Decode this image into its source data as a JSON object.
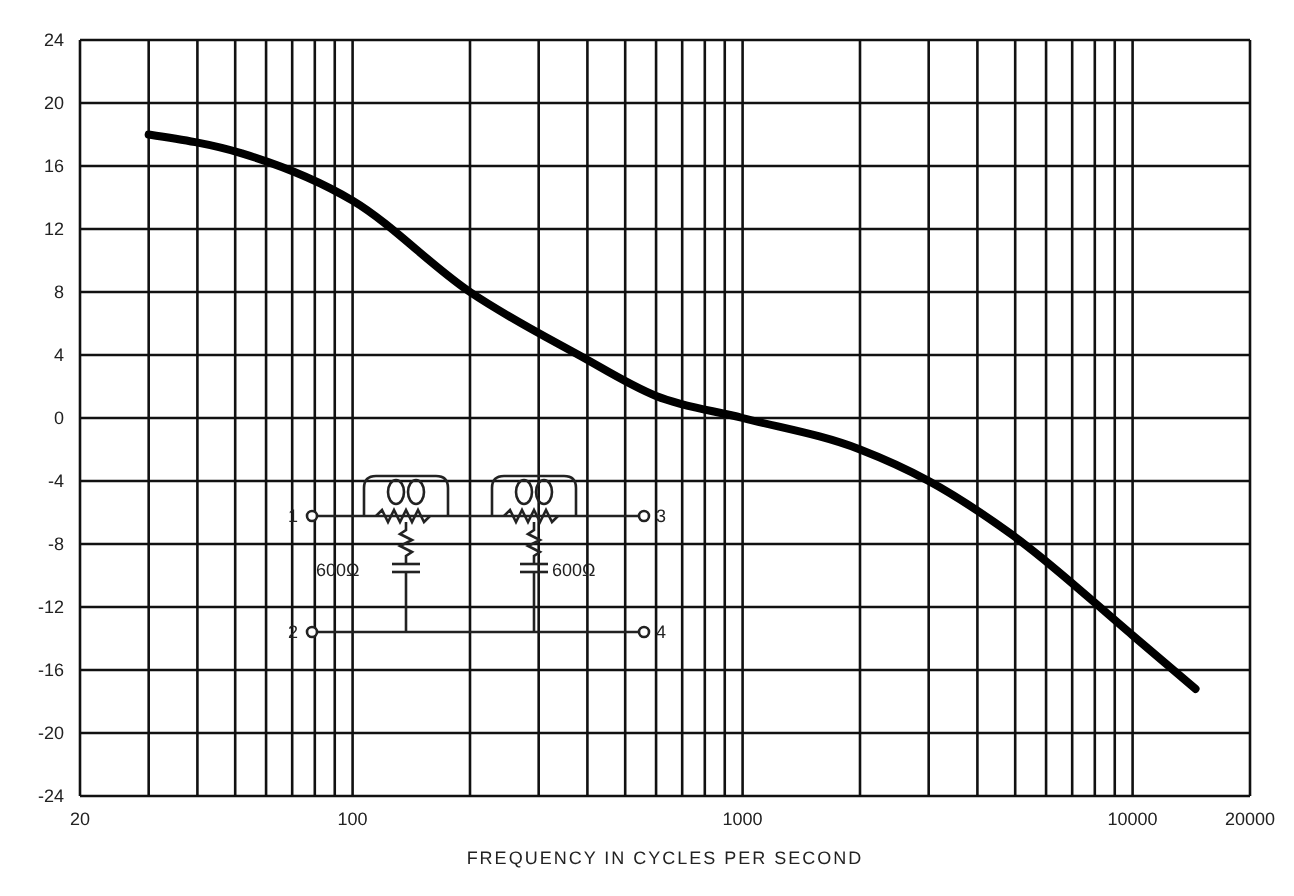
{
  "chart_data": {
    "type": "line",
    "xlabel": "FREQUENCY IN CYCLES PER SECOND",
    "x": [
      30,
      52,
      100,
      200,
      380,
      600,
      1000,
      2000,
      3000,
      4900,
      10000,
      14500
    ],
    "series": [
      {
        "color": "#000000",
        "values": [
          18,
          16.8,
          13.8,
          8,
          4,
          1.4,
          0,
          -2,
          -4,
          -7.4,
          -13.8,
          -17.2
        ]
      }
    ],
    "log": "x",
    "xlim": [
      20,
      20000
    ],
    "xticks": [
      20,
      {
        "value": 30,
        "label": null
      },
      {
        "value": 40,
        "label": null
      },
      {
        "value": 50,
        "label": null
      },
      {
        "value": 60,
        "label": null
      },
      {
        "value": 70,
        "label": null
      },
      {
        "value": 80,
        "label": null
      },
      {
        "value": 90,
        "label": null
      },
      100,
      {
        "value": 200,
        "label": null
      },
      {
        "value": 300,
        "label": null
      },
      {
        "value": 400,
        "label": null
      },
      {
        "value": 500,
        "label": null
      },
      {
        "value": 600,
        "label": null
      },
      {
        "value": 700,
        "label": null
      },
      {
        "value": 800,
        "label": null
      },
      {
        "value": 900,
        "label": null
      },
      1000,
      {
        "value": 2000,
        "label": null
      },
      {
        "value": 3000,
        "label": null
      },
      {
        "value": 4000,
        "label": null
      },
      {
        "value": 5000,
        "label": null
      },
      {
        "value": 6000,
        "label": null
      },
      {
        "value": 7000,
        "label": null
      },
      {
        "value": 8000,
        "label": null
      },
      {
        "value": 9000,
        "label": null
      },
      10000,
      20000
    ],
    "ylim": [
      -24,
      24
    ],
    "yticks": [
      -24,
      -20,
      -16,
      -12,
      -8,
      -4,
      0,
      4,
      8,
      12,
      16,
      20,
      24
    ],
    "grid": true,
    "legend": false,
    "marker": "none",
    "line_style": "solid",
    "annotations": [
      "1",
      "2",
      "3",
      "4",
      "600Ω",
      "600Ω"
    ]
  }
}
